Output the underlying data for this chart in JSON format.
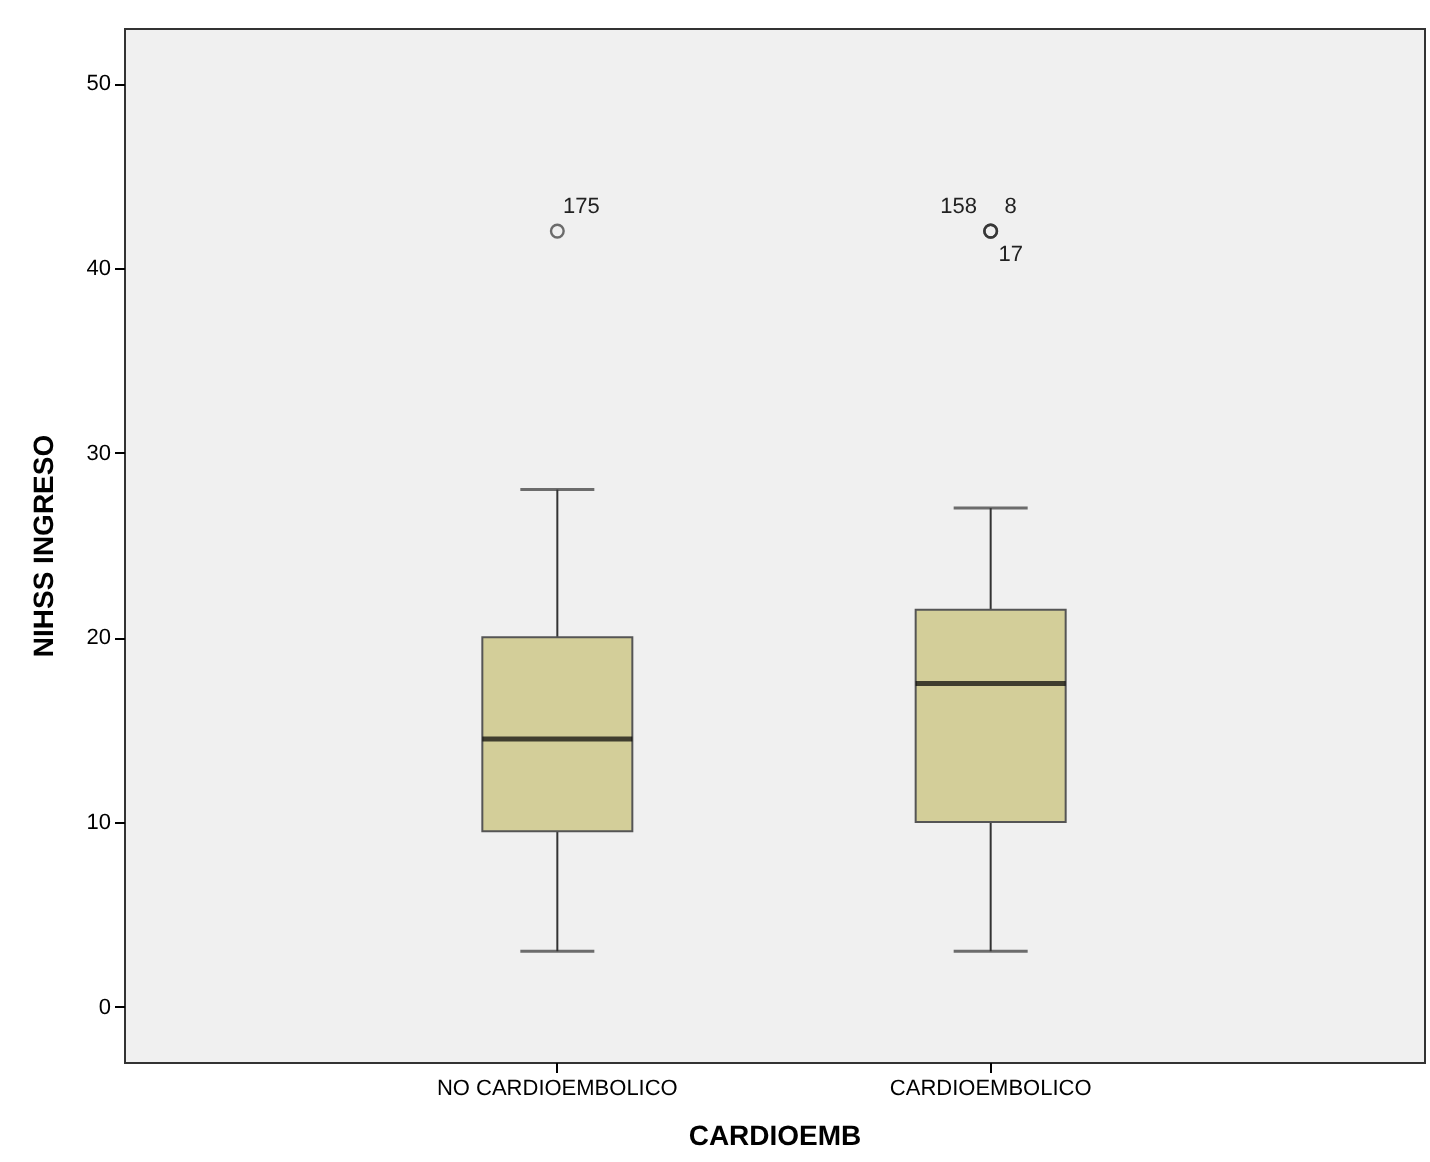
{
  "chart_data": {
    "type": "box",
    "xlabel": "CARDIOEMB",
    "ylabel": "NIHSS INGRESO",
    "categories": [
      "NO CARDIOEMBOLICO",
      "CARDIOEMBOLICO"
    ],
    "color": "#d3ce99",
    "boxes": [
      {
        "low": 3,
        "q1": 9.5,
        "median": 14.5,
        "q3": 20,
        "high": 28,
        "outliers": [
          42
        ]
      },
      {
        "low": 3,
        "q1": 10,
        "median": 17.5,
        "q3": 21.5,
        "high": 27,
        "outliers": [
          42,
          42,
          42
        ]
      }
    ],
    "ylim": [
      -3,
      53
    ],
    "yticks": [
      0,
      10,
      20,
      30,
      40,
      50
    ],
    "grid": false,
    "marker": "circle",
    "annotations": [
      "175",
      "158",
      "8",
      "17"
    ]
  }
}
